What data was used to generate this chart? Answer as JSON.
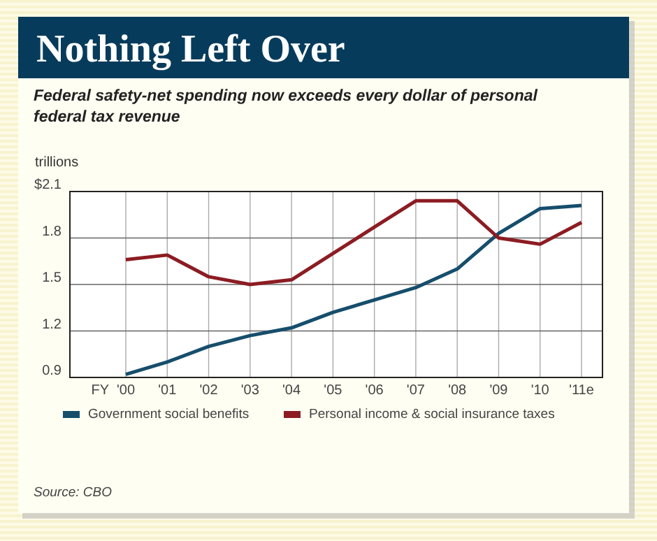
{
  "chart_data": {
    "type": "line",
    "title": "Nothing Left Over",
    "subtitle": "Federal safety-net spending now exceeds every dollar of personal federal tax revenue",
    "ylabel": "trillions",
    "xlabel": "FY",
    "categories": [
      "'00",
      "'01",
      "'02",
      "'03",
      "'04",
      "'05",
      "'06",
      "'07",
      "'08",
      "'09",
      "'10",
      "'11e"
    ],
    "series": [
      {
        "name": "Government social benefits",
        "color": "#164e6c",
        "values": [
          0.92,
          1.0,
          1.1,
          1.17,
          1.22,
          1.32,
          1.4,
          1.48,
          1.6,
          1.83,
          1.99,
          2.01
        ]
      },
      {
        "name": "Personal income & social insurance taxes",
        "color": "#8c1c22",
        "values": [
          1.66,
          1.69,
          1.55,
          1.5,
          1.53,
          1.7,
          1.87,
          2.04,
          2.04,
          1.8,
          1.76,
          1.9
        ]
      }
    ],
    "ylim": [
      0.9,
      2.1
    ],
    "yticks": [
      0.9,
      1.2,
      1.5,
      1.8,
      {
        "value": 2.1,
        "label": "$2.1"
      }
    ],
    "grid": true,
    "legend": "bottom",
    "marker": "none",
    "line_style": "solid",
    "annotations": [
      "Source: CBO"
    ]
  }
}
